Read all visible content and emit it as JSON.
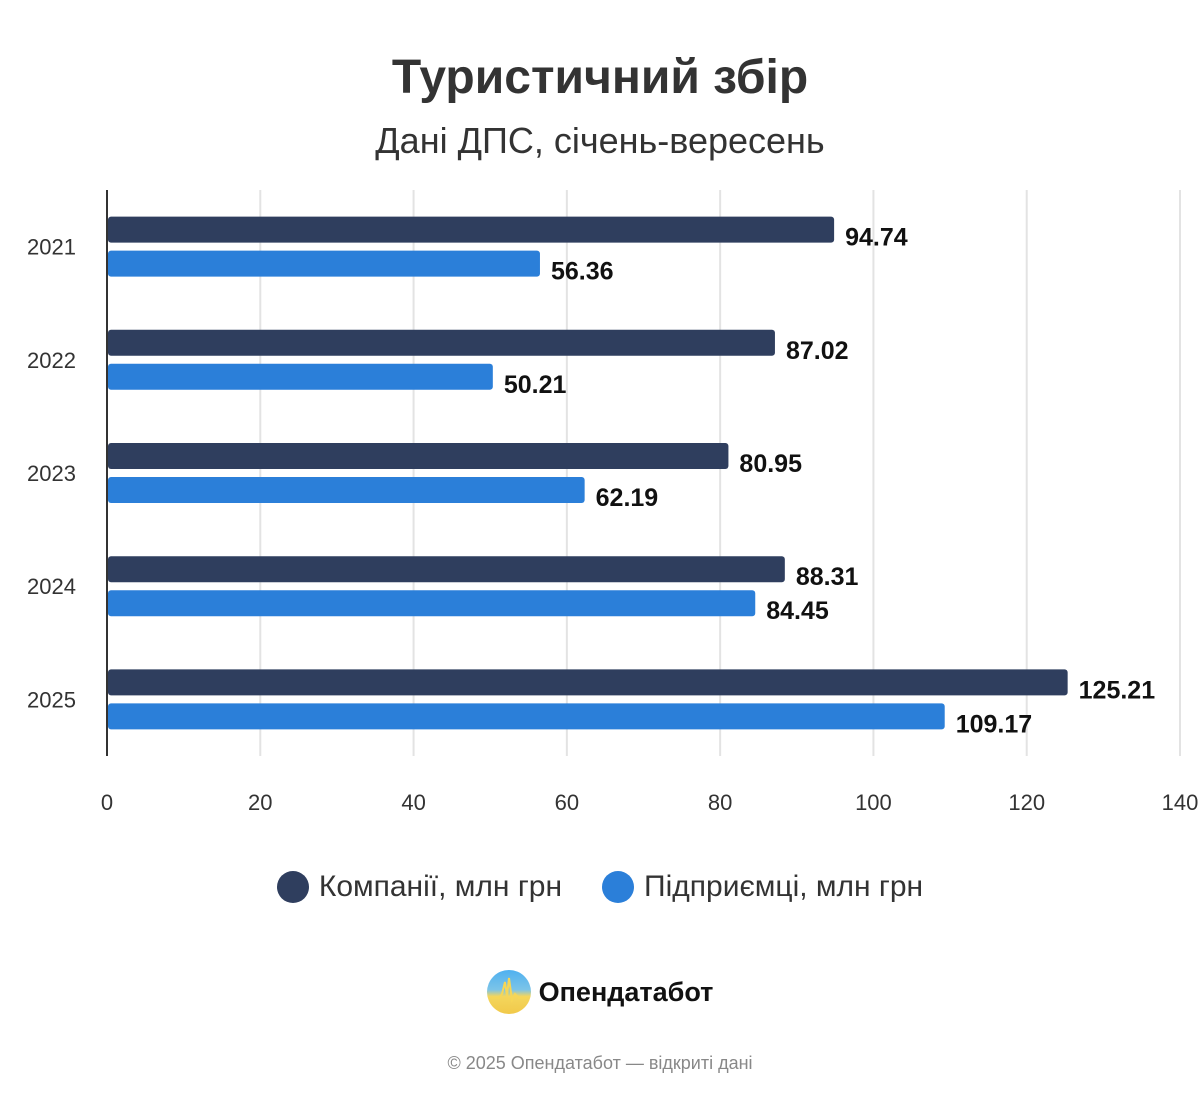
{
  "chart_data": {
    "type": "bar",
    "orientation": "horizontal",
    "title": "Туристичний збір",
    "subtitle": "Дані ДПС, січень-вересень",
    "categories": [
      "2021",
      "2022",
      "2023",
      "2024",
      "2025"
    ],
    "series": [
      {
        "name": "Компанії, млн грн",
        "color": "#2f3e5e",
        "values": [
          94.74,
          87.02,
          80.95,
          88.31,
          125.21
        ]
      },
      {
        "name": "Підприємці, млн грн",
        "color": "#2b7fd9",
        "values": [
          56.36,
          50.21,
          62.19,
          84.45,
          109.17
        ]
      }
    ],
    "xlim": [
      0,
      140
    ],
    "xticks": [
      "0",
      "20",
      "40",
      "60",
      "80",
      "100",
      "120",
      "140"
    ],
    "grid": true,
    "legend_position": "bottom"
  },
  "branding": {
    "logo_text": "Опендатабот",
    "footer": "© 2025 Опендатабот — відкриті дані"
  }
}
